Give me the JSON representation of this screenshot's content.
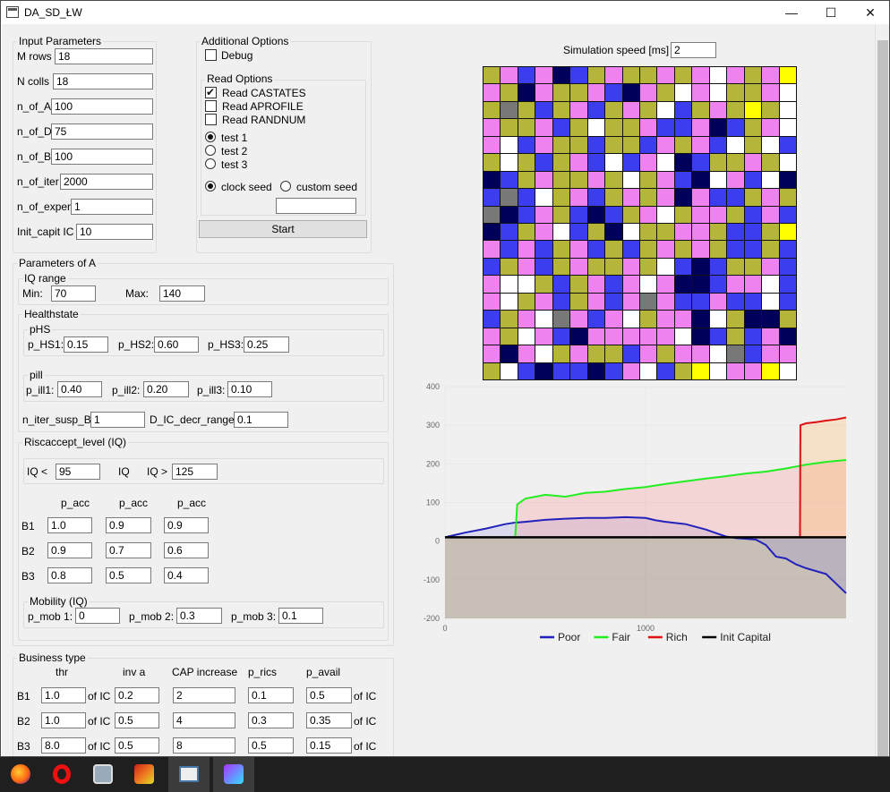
{
  "window": {
    "title": "DA_SD_ŁW",
    "minimize": "—",
    "maximize": "☐",
    "close": "✕"
  },
  "input_parameters": {
    "title": "Input Parameters",
    "fields": [
      {
        "label": "M rows",
        "value": "18"
      },
      {
        "label": "N colls",
        "value": "18"
      },
      {
        "label": "n_of_A",
        "value": "100"
      },
      {
        "label": "n_of_D",
        "value": "75"
      },
      {
        "label": "n_of_B",
        "value": "100"
      },
      {
        "label": "n_of_iter",
        "value": "2000"
      },
      {
        "label": "n_of_exper",
        "value": "1"
      },
      {
        "label": "Init_capit IC",
        "value": "10"
      }
    ]
  },
  "additional_options": {
    "title": "Additional Options",
    "debug_label": "Debug",
    "read_options_title": "Read Options",
    "read_castates": "Read CASTATES",
    "read_aprofile": "Read APROFILE",
    "read_randnum": "Read RANDNUM",
    "test1": "test 1",
    "test2": "test 2",
    "test3": "test 3",
    "clock_seed": "clock seed",
    "custom_seed": "custom seed",
    "custom_seed_value": "",
    "start": "Start"
  },
  "params_a": {
    "title": "Parameters of A",
    "iq_range": {
      "title": "IQ range",
      "min_label": "Min:",
      "min": "70",
      "max_label": "Max:",
      "max": "140"
    },
    "healthstate": {
      "title": "Healthstate",
      "phs_title": "pHS",
      "phs1_label": "p_HS1:",
      "phs1": "0.15",
      "phs2_label": "p_HS2:",
      "phs2": "0.60",
      "phs3_label": "p_HS3:",
      "phs3": "0.25",
      "pill_title": "pill",
      "pill1_label": "p_ill1:",
      "pill1": "0.40",
      "pill2_label": "p_ill2:",
      "pill2": "0.20",
      "pill3_label": "p_ill3:",
      "pill3": "0.10",
      "n_iter_label": "n_iter_susp_B:",
      "n_iter": "1",
      "dic_label": "D_IC_decr_range:",
      "dic": "0.1"
    },
    "riskaccept": {
      "title": "Riscaccept_level (IQ)",
      "iq_lt_label": "IQ <",
      "iq_lt": "95",
      "iq_label": "IQ",
      "iq_gt_label": "IQ >",
      "iq_gt": "125",
      "col_headers": [
        "p_acc",
        "p_acc",
        "p_acc"
      ],
      "rows": [
        {
          "label": "B1",
          "values": [
            "1.0",
            "0.9",
            "0.9"
          ]
        },
        {
          "label": "B2",
          "values": [
            "0.9",
            "0.7",
            "0.6"
          ]
        },
        {
          "label": "B3",
          "values": [
            "0.8",
            "0.5",
            "0.4"
          ]
        }
      ]
    },
    "mobility": {
      "title": "Mobility (IQ)",
      "m1_label": "p_mob 1:",
      "m1": "0",
      "m2_label": "p_mob 2:",
      "m2": "0.3",
      "m3_label": "p_mob 3:",
      "m3": "0.1"
    }
  },
  "business": {
    "title": "Business type",
    "headers": [
      "thr",
      "inv a",
      "CAP increase",
      "p_rics",
      "p_avail"
    ],
    "of_ic": "of IC",
    "rows": [
      {
        "label": "B1",
        "thr": "1.0",
        "inv": "0.2",
        "cap": "2",
        "rics": "0.1",
        "avail": "0.5"
      },
      {
        "label": "B2",
        "thr": "1.0",
        "inv": "0.5",
        "cap": "4",
        "rics": "0.3",
        "avail": "0.35"
      },
      {
        "label": "B3",
        "thr": "8.0",
        "inv": "0.5",
        "cap": "8",
        "rics": "0.5",
        "avail": "0.15"
      }
    ]
  },
  "simulation": {
    "speed_label": "Simulation speed [ms]",
    "speed": "2"
  },
  "grid": {
    "rows": 18,
    "cols": 18,
    "palette": {
      "Y": "#b5b53a",
      "P": "#ee82ee",
      "B": "#3c3cf0",
      "N": "#00005a",
      "W": "#ffffff",
      "G": "#787878",
      "L": "#ffff00"
    },
    "cells": [
      "YPBPNBYPYYPYPWPYPL",
      "PYNPYYPBNPYWPWYYPW",
      "YGYBYPBYPYWBYPYLYW",
      "PYYPBYWYYPBBPNBYPW",
      "PWBPYYBYYBPYPBWYWB",
      "YWYBYPBWBPWNBYYPYW",
      "NBYPYYPYWYPBNWPBWN",
      "BGBWYPBYPYPNPBBYPY",
      "GNBPYBNBYPWYPPYBPB",
      "NBYPWBYNWYYPPYBBYL",
      "PBPBYPBYBYPYPYBBYB",
      "BYPBYPYYPYWBNBYYPB",
      "PWWYBYPBPWPNNBPPWB",
      "PWYPBYPBPGPBBPBBWB",
      "BYPWGPBPWYPPNWYNNY",
      "PYWPBNPPPPPWNBYBPN",
      "PNPWYPYYBPYPPWGBPP",
      "YWBNBBNBPWBYLWPPLW"
    ]
  },
  "chart_data": {
    "type": "area",
    "xlim": [
      0,
      2000
    ],
    "ylim": [
      -200,
      400
    ],
    "x_ticks": [
      0,
      1000
    ],
    "y_ticks": [
      -200,
      -100,
      0,
      100,
      200,
      300,
      400
    ],
    "legend": "bottom",
    "series": [
      {
        "name": "Poor",
        "color": "#2222bb",
        "fill": "rgba(120,120,220,0.18)",
        "x": [
          0,
          100,
          200,
          300,
          350,
          400,
          500,
          600,
          700,
          800,
          900,
          1000,
          1050,
          1100,
          1200,
          1300,
          1400,
          1450,
          1550,
          1600,
          1650,
          1700,
          1750,
          1800,
          1900,
          2000
        ],
        "y": [
          10,
          22,
          32,
          44,
          48,
          50,
          55,
          58,
          60,
          60,
          62,
          60,
          54,
          50,
          44,
          30,
          12,
          8,
          4,
          -10,
          -40,
          -45,
          -60,
          -70,
          -85,
          -135
        ]
      },
      {
        "name": "Fair",
        "color": "#22ee22",
        "fill": "rgba(255,120,120,0.22)",
        "x": [
          350,
          360,
          400,
          500,
          600,
          700,
          800,
          900,
          1000,
          1100,
          1200,
          1300,
          1400,
          1500,
          1600,
          1700,
          1800,
          1900,
          2000
        ],
        "y": [
          10,
          95,
          110,
          120,
          115,
          125,
          128,
          135,
          140,
          148,
          155,
          162,
          168,
          175,
          180,
          188,
          198,
          205,
          210
        ]
      },
      {
        "name": "Rich",
        "color": "#dd1111",
        "fill": "rgba(255,180,80,0.25)",
        "x": [
          1770,
          1772,
          1800,
          1850,
          1900,
          1950,
          2000
        ],
        "y": [
          10,
          300,
          305,
          308,
          312,
          315,
          320
        ]
      },
      {
        "name": "Init Capital",
        "color": "#000000",
        "fill": "rgba(150,130,110,0.45)",
        "x": [
          0,
          2000
        ],
        "y": [
          10,
          10
        ]
      }
    ]
  },
  "taskbar": {
    "items": [
      "firefox-icon",
      "opera-icon",
      "task-manager-icon",
      "rider-icon",
      "app-window-icon",
      "phpstorm-icon"
    ]
  }
}
